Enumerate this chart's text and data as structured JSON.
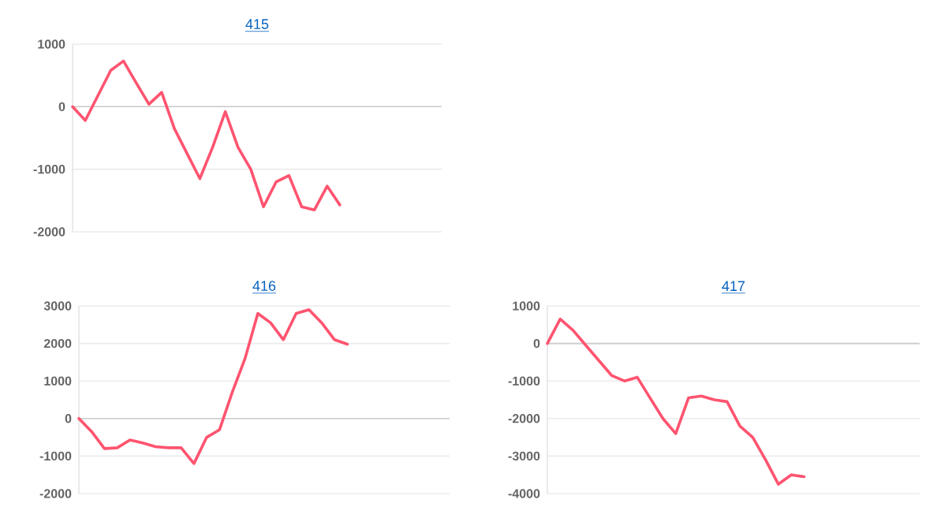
{
  "chart_data": [
    {
      "type": "line",
      "title": "415",
      "categories": [
        null,
        null,
        null,
        null,
        null,
        null,
        null,
        null,
        null,
        null,
        null,
        null,
        null,
        null,
        null,
        null,
        null,
        null,
        null,
        null,
        null,
        null,
        null,
        null,
        null,
        null,
        null,
        null,
        null,
        null
      ],
      "series": [
        {
          "color": "#ff5470",
          "values": [
            0,
            -220,
            180,
            580,
            730,
            380,
            40,
            230,
            -350,
            -750,
            -1150,
            -650,
            -80,
            -650,
            -1000,
            -1600,
            -1200,
            -1100,
            -1600,
            -1650,
            -1270,
            -1570,
            null,
            null,
            null,
            null,
            null,
            null,
            null,
            null
          ]
        }
      ],
      "ylim": [
        -2000,
        1000
      ],
      "yticks": [
        -2000,
        -1000,
        0,
        1000
      ],
      "grid": "y",
      "tick_labels": "y",
      "marker": "none"
    },
    {
      "type": "line",
      "title": "416",
      "categories": [
        null,
        null,
        null,
        null,
        null,
        null,
        null,
        null,
        null,
        null,
        null,
        null,
        null,
        null,
        null,
        null,
        null,
        null,
        null,
        null,
        null,
        null,
        null,
        null,
        null,
        null,
        null,
        null,
        null,
        null
      ],
      "series": [
        {
          "color": "#ff5470",
          "values": [
            0,
            -350,
            -800,
            -780,
            -570,
            -650,
            -750,
            -780,
            -780,
            -1200,
            -500,
            -300,
            700,
            1600,
            2800,
            2550,
            2100,
            2800,
            2900,
            2550,
            2100,
            1980,
            null,
            null,
            null,
            null,
            null,
            null,
            null,
            null
          ]
        }
      ],
      "ylim": [
        -2000,
        3000
      ],
      "yticks": [
        -2000,
        -1000,
        0,
        1000,
        2000,
        3000
      ],
      "grid": "y",
      "tick_labels": "y",
      "marker": "none"
    },
    {
      "type": "line",
      "title": "417",
      "categories": [
        null,
        null,
        null,
        null,
        null,
        null,
        null,
        null,
        null,
        null,
        null,
        null,
        null,
        null,
        null,
        null,
        null,
        null,
        null,
        null,
        null,
        null,
        null,
        null,
        null,
        null,
        null,
        null,
        null,
        null
      ],
      "series": [
        {
          "color": "#ff5470",
          "values": [
            0,
            650,
            350,
            -50,
            -450,
            -850,
            -1000,
            -900,
            -1450,
            -2000,
            -2400,
            -1450,
            -1400,
            -1500,
            -1550,
            -2200,
            -2500,
            -3100,
            -3750,
            -3500,
            -3550,
            null,
            null,
            null,
            null,
            null,
            null,
            null,
            null,
            null
          ]
        }
      ],
      "ylim": [
        -4000,
        1000
      ],
      "yticks": [
        -4000,
        -3000,
        -2000,
        -1000,
        0,
        1000
      ],
      "grid": "y",
      "tick_labels": "y",
      "marker": "none"
    }
  ]
}
